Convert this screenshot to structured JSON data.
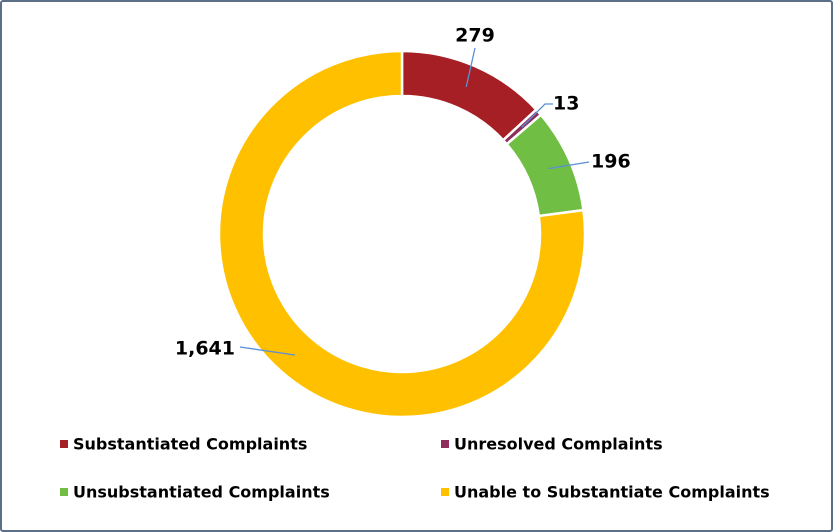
{
  "chart_data": {
    "type": "donut",
    "categories": [
      "Substantiated Complaints",
      "Unresolved Complaints",
      "Unsubstantiated Complaints",
      "Unable to Substantiate Complaints"
    ],
    "values": [
      279,
      13,
      196,
      1641
    ],
    "value_labels": [
      "279",
      "13",
      "196",
      "1,641"
    ],
    "colors": [
      "#a51f24",
      "#8e2d5a",
      "#70bf44",
      "#ffc000"
    ],
    "legend": "bottom"
  }
}
